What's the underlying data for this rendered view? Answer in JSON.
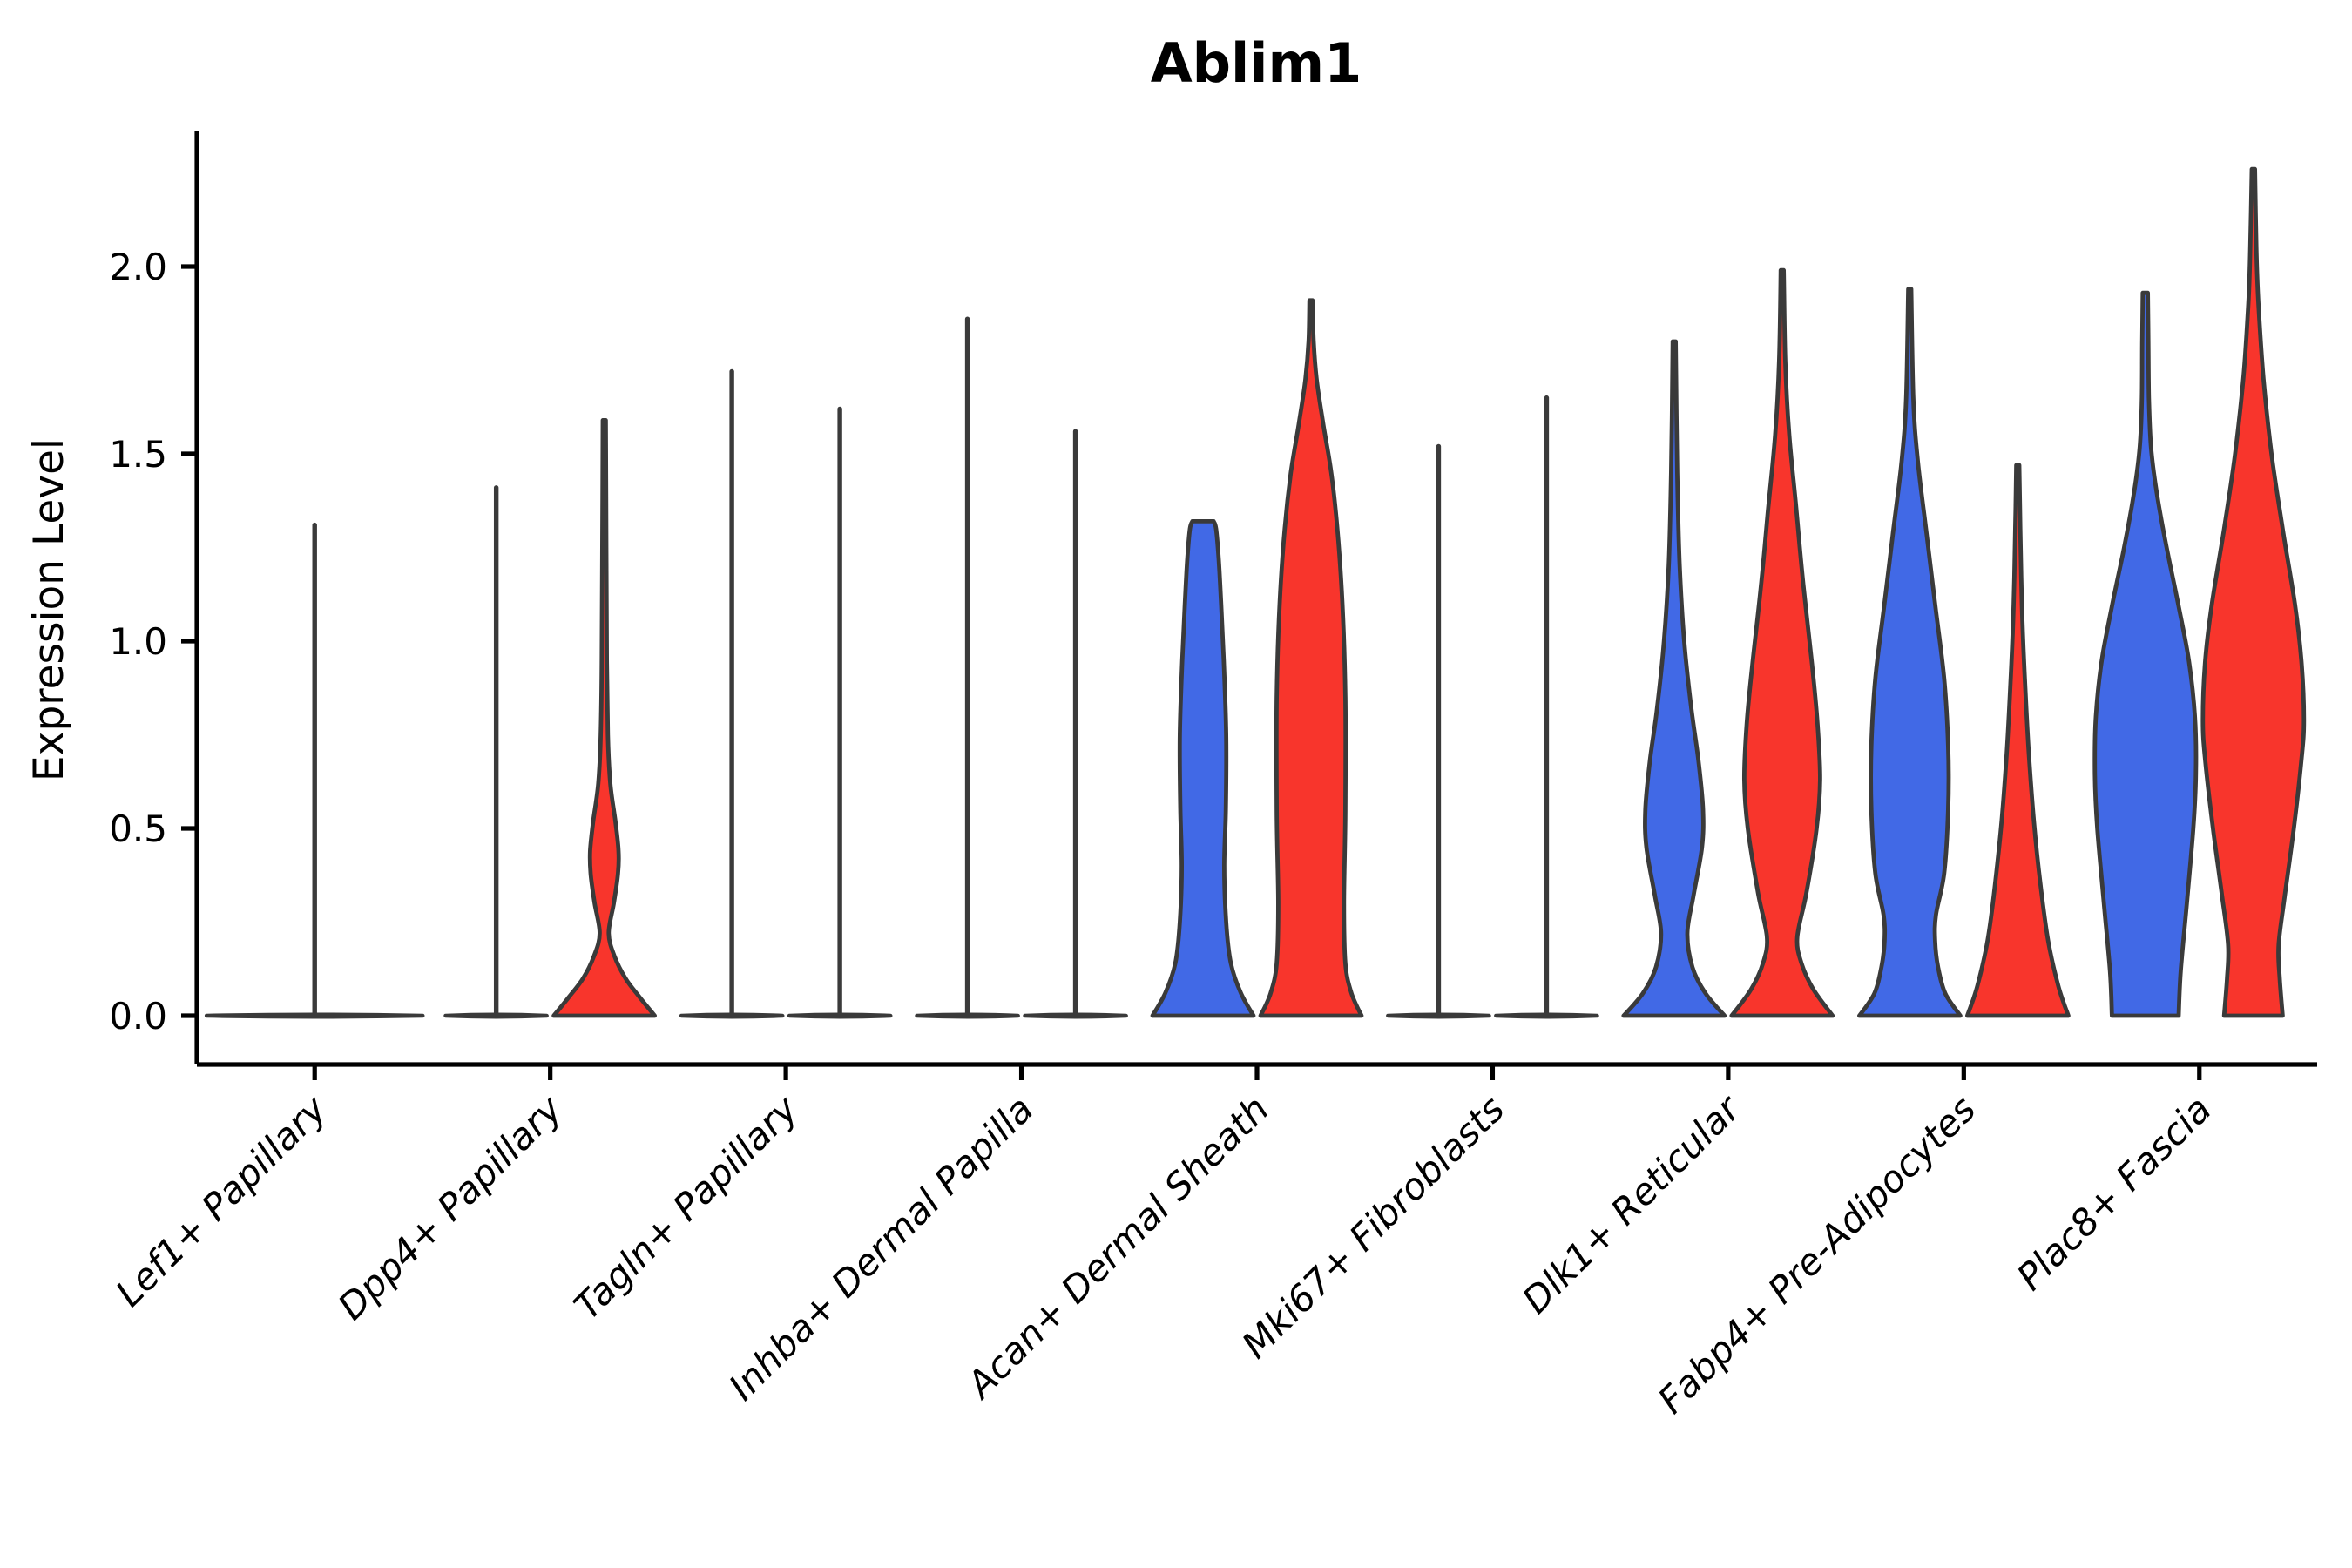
{
  "chart_data": {
    "type": "violin",
    "title": "Ablim1",
    "ylabel": "Expression Level",
    "xlabel": "",
    "ytick_labels": [
      "0.0",
      "0.5",
      "1.0",
      "1.5",
      "2.0"
    ],
    "ytick_values": [
      0.0,
      0.5,
      1.0,
      1.5,
      2.0
    ],
    "ylim": [
      -0.13,
      2.36
    ],
    "grid": false,
    "legend_position": "none",
    "background": "#FFFFFF",
    "outline_color": "#3A3A3A",
    "palette": {
      "blue": "#4169E6",
      "red": "#F8352C",
      "dark": "#3A3A3A"
    },
    "x_label_rotation_deg": 45,
    "categories": [
      "Lef1+ Papillary",
      "Dpp4+ Papillary",
      "Tagln+ Papillary",
      "Inhba+ Dermal Papilla",
      "Acan+ Dermal Sheath",
      "Mki67+ Fibroblasts",
      "Dlk1+ Reticular",
      "Fabp4+ Pre-Adipocytes",
      "Plac8+ Fascia"
    ],
    "groups": [
      {
        "category": "Lef1+ Papillary",
        "violins": [
          {
            "color": "dark",
            "kind": "flat_spike",
            "max": 1.31,
            "span": "full"
          }
        ]
      },
      {
        "category": "Dpp4+ Papillary",
        "violins": [
          {
            "color": "blue",
            "kind": "flat_spike",
            "max": 1.41
          },
          {
            "color": "red",
            "kind": "shaped",
            "max": 1.59,
            "profile": [
              [
                0,
                1
              ],
              [
                0.05,
                0.7
              ],
              [
                0.1,
                0.42
              ],
              [
                0.16,
                0.2
              ],
              [
                0.22,
                0.09
              ],
              [
                0.3,
                0.19
              ],
              [
                0.38,
                0.27
              ],
              [
                0.44,
                0.28
              ],
              [
                0.52,
                0.22
              ],
              [
                0.62,
                0.12
              ],
              [
                0.75,
                0.07
              ],
              [
                0.95,
                0.05
              ],
              [
                1.25,
                0.04
              ],
              [
                1.59,
                0.03
              ]
            ]
          }
        ]
      },
      {
        "category": "Tagln+ Papillary",
        "violins": [
          {
            "color": "blue",
            "kind": "flat_spike",
            "max": 1.72
          },
          {
            "color": "red",
            "kind": "flat_spike",
            "max": 1.62
          }
        ]
      },
      {
        "category": "Inhba+ Dermal Papilla",
        "violins": [
          {
            "color": "blue",
            "kind": "flat_spike",
            "max": 1.86
          },
          {
            "color": "red",
            "kind": "flat_spike",
            "max": 1.56
          }
        ]
      },
      {
        "category": "Acan+ Dermal Sheath",
        "violins": [
          {
            "color": "blue",
            "kind": "shaped",
            "max": 1.32,
            "profile": [
              [
                0,
                1
              ],
              [
                0.06,
                0.75
              ],
              [
                0.14,
                0.55
              ],
              [
                0.25,
                0.46
              ],
              [
                0.4,
                0.42
              ],
              [
                0.55,
                0.45
              ],
              [
                0.75,
                0.46
              ],
              [
                0.95,
                0.41
              ],
              [
                1.1,
                0.36
              ],
              [
                1.22,
                0.31
              ],
              [
                1.3,
                0.26
              ],
              [
                1.32,
                0.21
              ]
            ]
          },
          {
            "color": "red",
            "kind": "shaped",
            "max": 1.91,
            "profile": [
              [
                0,
                1
              ],
              [
                0.06,
                0.8
              ],
              [
                0.14,
                0.68
              ],
              [
                0.3,
                0.65
              ],
              [
                0.55,
                0.68
              ],
              [
                0.85,
                0.68
              ],
              [
                1.1,
                0.62
              ],
              [
                1.3,
                0.52
              ],
              [
                1.45,
                0.4
              ],
              [
                1.58,
                0.24
              ],
              [
                1.7,
                0.11
              ],
              [
                1.8,
                0.05
              ],
              [
                1.91,
                0.03
              ]
            ]
          }
        ]
      },
      {
        "category": "Mki67+ Fibroblasts",
        "violins": [
          {
            "color": "blue",
            "kind": "flat_spike",
            "max": 1.52
          },
          {
            "color": "red",
            "kind": "flat_spike",
            "max": 1.65
          }
        ]
      },
      {
        "category": "Dlk1+ Reticular",
        "violins": [
          {
            "color": "blue",
            "kind": "shaped",
            "max": 1.8,
            "profile": [
              [
                0,
                1
              ],
              [
                0.06,
                0.62
              ],
              [
                0.13,
                0.36
              ],
              [
                0.22,
                0.26
              ],
              [
                0.32,
                0.38
              ],
              [
                0.45,
                0.55
              ],
              [
                0.55,
                0.57
              ],
              [
                0.68,
                0.48
              ],
              [
                0.82,
                0.34
              ],
              [
                1,
                0.2
              ],
              [
                1.2,
                0.11
              ],
              [
                1.45,
                0.06
              ],
              [
                1.8,
                0.03
              ]
            ]
          },
          {
            "color": "red",
            "kind": "shaped",
            "max": 1.99,
            "profile": [
              [
                0,
                1
              ],
              [
                0.07,
                0.62
              ],
              [
                0.14,
                0.38
              ],
              [
                0.21,
                0.3
              ],
              [
                0.33,
                0.48
              ],
              [
                0.5,
                0.68
              ],
              [
                0.63,
                0.75
              ],
              [
                0.78,
                0.7
              ],
              [
                0.95,
                0.58
              ],
              [
                1.15,
                0.42
              ],
              [
                1.35,
                0.28
              ],
              [
                1.55,
                0.14
              ],
              [
                1.75,
                0.06
              ],
              [
                1.99,
                0.03
              ]
            ]
          }
        ]
      },
      {
        "category": "Fabp4+ Pre-Adipocytes",
        "violins": [
          {
            "color": "blue",
            "kind": "shaped",
            "max": 1.94,
            "profile": [
              [
                0,
                1
              ],
              [
                0.06,
                0.7
              ],
              [
                0.13,
                0.56
              ],
              [
                0.2,
                0.5
              ],
              [
                0.27,
                0.52
              ],
              [
                0.38,
                0.68
              ],
              [
                0.55,
                0.76
              ],
              [
                0.72,
                0.76
              ],
              [
                0.9,
                0.68
              ],
              [
                1.08,
                0.52
              ],
              [
                1.28,
                0.34
              ],
              [
                1.48,
                0.16
              ],
              [
                1.65,
                0.07
              ],
              [
                1.94,
                0.03
              ]
            ]
          },
          {
            "color": "red",
            "kind": "shaped",
            "max": 1.47,
            "profile": [
              [
                0,
                1
              ],
              [
                0.08,
                0.8
              ],
              [
                0.2,
                0.6
              ],
              [
                0.35,
                0.45
              ],
              [
                0.52,
                0.32
              ],
              [
                0.7,
                0.22
              ],
              [
                0.9,
                0.14
              ],
              [
                1.1,
                0.08
              ],
              [
                1.3,
                0.05
              ],
              [
                1.47,
                0.03
              ]
            ]
          }
        ]
      },
      {
        "category": "Plac8+ Fascia",
        "violins": [
          {
            "color": "blue",
            "kind": "shaped",
            "max": 1.93,
            "profile": [
              [
                0,
                0.66
              ],
              [
                0.12,
                0.7
              ],
              [
                0.3,
                0.82
              ],
              [
                0.5,
                0.95
              ],
              [
                0.65,
                1
              ],
              [
                0.8,
                0.98
              ],
              [
                0.95,
                0.86
              ],
              [
                1.1,
                0.65
              ],
              [
                1.25,
                0.42
              ],
              [
                1.4,
                0.22
              ],
              [
                1.52,
                0.11
              ],
              [
                1.65,
                0.07
              ],
              [
                1.8,
                0.06
              ],
              [
                1.93,
                0.05
              ]
            ]
          },
          {
            "color": "red",
            "kind": "shaped",
            "max": 2.26,
            "profile": [
              [
                0,
                0.58
              ],
              [
                0.1,
                0.52
              ],
              [
                0.19,
                0.5
              ],
              [
                0.32,
                0.62
              ],
              [
                0.5,
                0.8
              ],
              [
                0.68,
                0.95
              ],
              [
                0.79,
                1
              ],
              [
                0.95,
                0.95
              ],
              [
                1.1,
                0.82
              ],
              [
                1.3,
                0.58
              ],
              [
                1.5,
                0.36
              ],
              [
                1.7,
                0.2
              ],
              [
                1.9,
                0.1
              ],
              [
                2.05,
                0.06
              ],
              [
                2.26,
                0.03
              ]
            ]
          }
        ]
      }
    ]
  }
}
